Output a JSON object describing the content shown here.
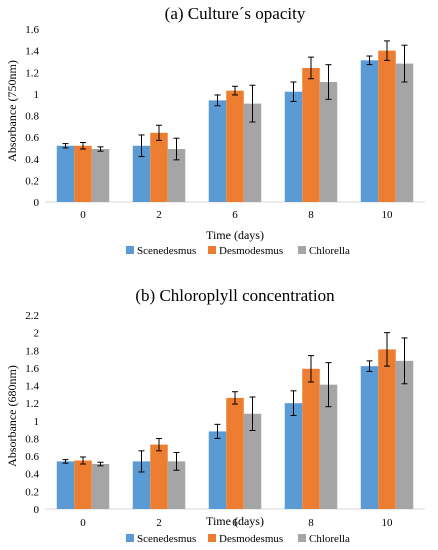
{
  "chart_data": [
    {
      "type": "bar",
      "title": "(a) Culture´s opacity",
      "xlabel": "Time (days)",
      "ylabel": "Absorbance (750nm)",
      "categories": [
        "0",
        "2",
        "6",
        "8",
        "10"
      ],
      "ylim": [
        0,
        1.6
      ],
      "yticks": [
        "0",
        "0.2",
        "0.4",
        "0.6",
        "0.8",
        "1",
        "1.2",
        "1.4",
        "1.6"
      ],
      "legend_position": "bottom",
      "series": [
        {
          "name": "Scenedesmus",
          "color": "#5B9BD5",
          "values": [
            0.52,
            0.52,
            0.94,
            1.02,
            1.31
          ],
          "errors": [
            0.02,
            0.1,
            0.05,
            0.09,
            0.04
          ]
        },
        {
          "name": "Desmodesmus",
          "color": "#ED7D31",
          "values": [
            0.52,
            0.64,
            1.03,
            1.24,
            1.4
          ],
          "errors": [
            0.03,
            0.07,
            0.04,
            0.1,
            0.09
          ]
        },
        {
          "name": "Chlorella",
          "color": "#A5A5A5",
          "values": [
            0.49,
            0.49,
            0.91,
            1.11,
            1.28
          ],
          "errors": [
            0.02,
            0.1,
            0.17,
            0.16,
            0.17
          ]
        }
      ]
    },
    {
      "type": "bar",
      "title": "(b) Chloroplyll concentration",
      "xlabel": "Time (days)",
      "ylabel": "Absorbance (680nm)",
      "categories": [
        "0",
        "2",
        "6",
        "8",
        "10"
      ],
      "ylim": [
        0,
        2.2
      ],
      "yticks": [
        "0",
        "0.2",
        "0.4",
        "0.6",
        "0.8",
        "1",
        "1.2",
        "1.4",
        "1.6",
        "1.8",
        "2",
        "2.2"
      ],
      "legend_position": "bottom",
      "series": [
        {
          "name": "Scenedesmus",
          "color": "#5B9BD5",
          "values": [
            0.54,
            0.54,
            0.88,
            1.2,
            1.62
          ],
          "errors": [
            0.02,
            0.12,
            0.08,
            0.14,
            0.06
          ]
        },
        {
          "name": "Desmodesmus",
          "color": "#ED7D31",
          "values": [
            0.55,
            0.73,
            1.26,
            1.59,
            1.81
          ],
          "errors": [
            0.04,
            0.07,
            0.07,
            0.15,
            0.19
          ]
        },
        {
          "name": "Chlorella",
          "color": "#A5A5A5",
          "values": [
            0.51,
            0.54,
            1.08,
            1.41,
            1.68
          ],
          "errors": [
            0.02,
            0.1,
            0.19,
            0.25,
            0.26
          ]
        }
      ]
    }
  ]
}
